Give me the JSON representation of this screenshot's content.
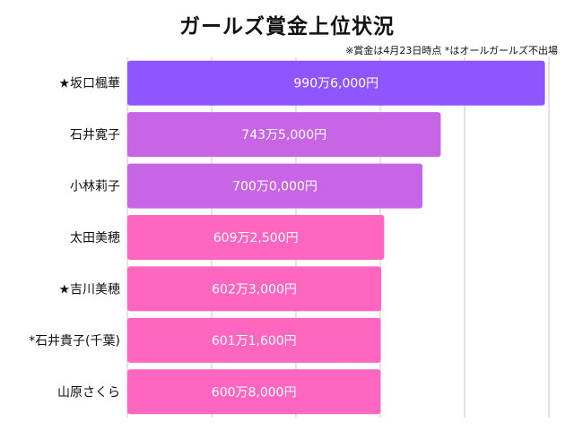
{
  "chart_data": {
    "type": "bar",
    "orientation": "horizontal",
    "title": "ガールズ賞金上位状況",
    "note": "※賞金は4月23日時点 *はオールガールズ不出場",
    "grid": true,
    "xlim": [
      0,
      10000000
    ],
    "categories": [
      "★坂口楓華",
      "石井寛子",
      "小林莉子",
      "太田美穂",
      "★吉川美穂",
      "*石井貴子(千葉)",
      "山原さくら"
    ],
    "values": [
      9906000,
      7435000,
      7000000,
      6092500,
      6023000,
      6011600,
      6008000
    ],
    "data_labels": [
      "990万6,000円",
      "743万5,000円",
      "700万0,000円",
      "609万2,500円",
      "602万3,000円",
      "601万1,600円",
      "600万8,000円"
    ],
    "colors": [
      "#8f55ff",
      "#c865e6",
      "#c865e6",
      "#ff66bf",
      "#ff66bf",
      "#ff66bf",
      "#ff66bf"
    ]
  }
}
